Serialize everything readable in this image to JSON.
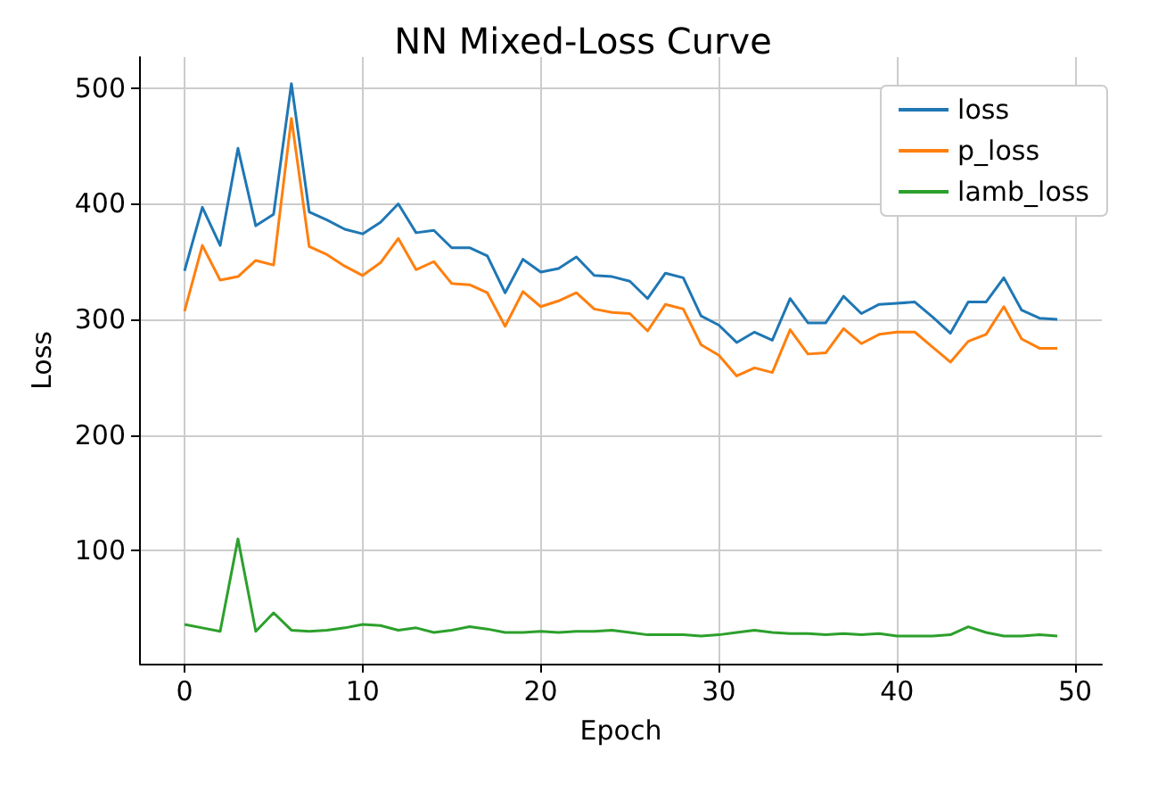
{
  "chart_data": {
    "type": "line",
    "title": "NN Mixed-Loss Curve",
    "xlabel": "Epoch",
    "ylabel": "Loss",
    "x": [
      0,
      1,
      2,
      3,
      4,
      5,
      6,
      7,
      8,
      9,
      10,
      11,
      12,
      13,
      14,
      15,
      16,
      17,
      18,
      19,
      20,
      21,
      22,
      23,
      24,
      25,
      26,
      27,
      28,
      29,
      30,
      31,
      32,
      33,
      34,
      35,
      36,
      37,
      38,
      39,
      40,
      41,
      42,
      43,
      44,
      45,
      46,
      47,
      48,
      49
    ],
    "series": [
      {
        "name": "loss",
        "color": "#1f77b4",
        "values": [
          342,
          397,
          364,
          448,
          381,
          391,
          504,
          393,
          386,
          378,
          374,
          384,
          400,
          375,
          377,
          362,
          362,
          355,
          323,
          352,
          341,
          344,
          354,
          338,
          337,
          333,
          318,
          340,
          336,
          303,
          295,
          280,
          289,
          282,
          318,
          297,
          297,
          320,
          305,
          313,
          314,
          315,
          302,
          288,
          315,
          315,
          336,
          308,
          301,
          300
        ]
      },
      {
        "name": "p_loss",
        "color": "#ff7f0e",
        "values": [
          307,
          364,
          334,
          337,
          351,
          347,
          474,
          363,
          356,
          346,
          338,
          349,
          370,
          343,
          350,
          331,
          330,
          323,
          294,
          324,
          311,
          316,
          323,
          309,
          306,
          305,
          290,
          313,
          309,
          278,
          269,
          251,
          258,
          254,
          291,
          270,
          271,
          292,
          279,
          287,
          289,
          289,
          276,
          263,
          281,
          287,
          311,
          283,
          275,
          275
        ]
      },
      {
        "name": "lamb_loss",
        "color": "#2ca02c",
        "values": [
          36,
          33,
          30,
          110,
          30,
          46,
          31,
          30,
          31,
          33,
          36,
          35,
          31,
          33,
          29,
          31,
          34,
          32,
          29,
          29,
          30,
          29,
          30,
          30,
          31,
          29,
          27,
          27,
          27,
          26,
          27,
          29,
          31,
          29,
          28,
          28,
          27,
          28,
          27,
          28,
          26,
          26,
          26,
          27,
          34,
          29,
          26,
          26,
          27,
          26
        ]
      }
    ],
    "xlim": [
      -2.5,
      51.5
    ],
    "xticks": [
      0,
      10,
      20,
      30,
      40,
      50
    ],
    "ylim": [
      2,
      527
    ],
    "yticks": [
      100,
      200,
      300,
      400,
      500
    ],
    "grid": true,
    "legend": "top right",
    "line_style": "solid",
    "marker": "none"
  }
}
